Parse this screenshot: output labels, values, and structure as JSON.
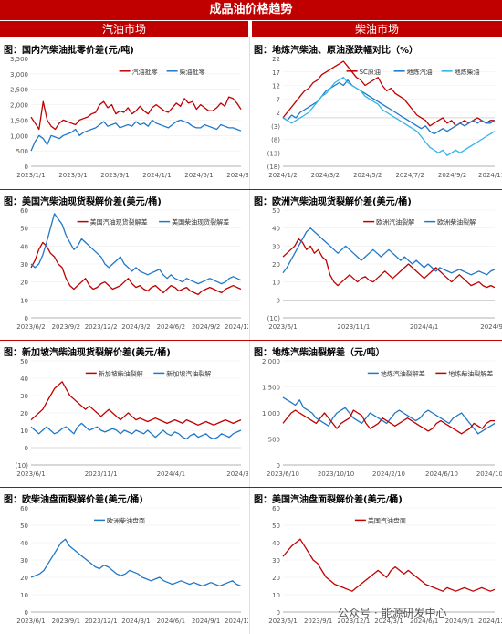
{
  "header": {
    "title": "成品油价格趋势"
  },
  "columns": {
    "left": "汽油市场",
    "right": "柴油市场"
  },
  "watermark": "公众号 · 能源研发中心",
  "colors": {
    "red": "#c00000",
    "blue": "#1f78c8",
    "lightblue": "#33b5e5",
    "accent": "#c00000"
  },
  "chart_data": [
    {
      "id": "p1",
      "title": "图：国内汽柴油批零价差(元/吨)",
      "type": "line",
      "ylim": [
        0,
        3500
      ],
      "yticks": [
        "0",
        "500",
        "1,000",
        "1,500",
        "2,000",
        "2,500",
        "3,000",
        "3,500"
      ],
      "xticks": [
        "2023/1/1",
        "2023/5/1",
        "2023/9/1",
        "2024/1/1",
        "2024/5/1",
        "2024/9/1"
      ],
      "series": [
        {
          "name": "汽油批零",
          "color": "#c00000",
          "values": [
            1600,
            1400,
            1200,
            2100,
            1500,
            1300,
            1200,
            1400,
            1500,
            1450,
            1400,
            1350,
            1500,
            1550,
            1600,
            1700,
            1750,
            2000,
            2100,
            1900,
            2000,
            1700,
            1800,
            1750,
            1900,
            1700,
            1800,
            1950,
            1800,
            1700,
            1900,
            2000,
            1900,
            1800,
            1750,
            1900,
            2050,
            1950,
            2200,
            2050,
            2100,
            1850,
            2000,
            1900,
            1800,
            1800,
            1900,
            2050,
            1950,
            2250,
            2200,
            2050,
            1850
          ]
        },
        {
          "name": "柴油批零",
          "color": "#1f78c8",
          "values": [
            500,
            800,
            1000,
            900,
            700,
            1000,
            950,
            900,
            1000,
            1050,
            1100,
            1200,
            1000,
            1100,
            1150,
            1200,
            1250,
            1350,
            1450,
            1300,
            1350,
            1400,
            1250,
            1300,
            1350,
            1300,
            1450,
            1350,
            1400,
            1300,
            1500,
            1400,
            1350,
            1300,
            1250,
            1350,
            1450,
            1500,
            1450,
            1400,
            1300,
            1250,
            1250,
            1350,
            1300,
            1250,
            1200,
            1350,
            1300,
            1250,
            1250,
            1200,
            1150
          ]
        }
      ]
    },
    {
      "id": "p2",
      "title": "图：地炼汽柴油、原油涨跌幅对比（%）",
      "type": "line",
      "ylim": [
        -18,
        22
      ],
      "yticks": [
        "(18)",
        "(13)",
        "(8)",
        "(3)",
        "2",
        "7",
        "12",
        "17",
        "22"
      ],
      "xticks": [
        "2024/1/2",
        "2024/3/2",
        "2024/5/2",
        "2024/7/2",
        "2024/9/2",
        "2024/11/2"
      ],
      "series": [
        {
          "name": "SC原油",
          "color": "#c00000",
          "values": [
            0,
            2,
            4,
            6,
            8,
            10,
            11,
            13,
            14,
            16,
            17,
            18,
            19,
            20,
            21,
            19,
            17,
            15,
            14,
            12,
            13,
            14,
            15,
            12,
            10,
            11,
            9,
            8,
            7,
            5,
            3,
            1,
            0,
            -1,
            -3,
            -2,
            -1,
            0,
            -2,
            -1,
            -3,
            -2,
            -1,
            -2,
            -1,
            0,
            -1,
            -2,
            -1,
            -1
          ]
        },
        {
          "name": "地炼汽油",
          "color": "#1f78c8",
          "values": [
            0,
            -1,
            1,
            0,
            2,
            3,
            4,
            5,
            6,
            8,
            10,
            11,
            12,
            13,
            12,
            14,
            12,
            11,
            10,
            9,
            8,
            7,
            6,
            5,
            4,
            3,
            2,
            1,
            0,
            -1,
            -2,
            -3,
            -4,
            -3,
            -5,
            -6,
            -5,
            -4,
            -5,
            -4,
            -3,
            -2,
            -3,
            -2,
            -1,
            -2,
            -1,
            -2,
            -2,
            -1
          ]
        },
        {
          "name": "地炼柴油",
          "color": "#33b5e5",
          "values": [
            0,
            -1,
            -2,
            -1,
            0,
            1,
            2,
            4,
            6,
            8,
            9,
            11,
            13,
            14,
            15,
            13,
            12,
            11,
            10,
            8,
            7,
            6,
            5,
            3,
            2,
            1,
            0,
            -1,
            -2,
            -3,
            -4,
            -5,
            -7,
            -9,
            -11,
            -12,
            -13,
            -12,
            -14,
            -13,
            -12,
            -13,
            -12,
            -11,
            -10,
            -9,
            -8,
            -7,
            -6,
            -5
          ]
        }
      ]
    },
    {
      "id": "p3",
      "title": "图：美国汽柴油现货裂解价差(美元/桶)",
      "type": "line",
      "ylim": [
        0,
        60
      ],
      "yticks": [
        "0",
        "10",
        "20",
        "30",
        "40",
        "50",
        "60"
      ],
      "xticks": [
        "2023/6/2",
        "2023/9/2",
        "2023/12/2",
        "2024/3/2",
        "2024/6/2",
        "2024/9/2",
        "2024/12/2"
      ],
      "series": [
        {
          "name": "美国汽油现货裂解差",
          "color": "#c00000",
          "values": [
            28,
            32,
            38,
            42,
            40,
            36,
            34,
            30,
            28,
            22,
            18,
            16,
            18,
            20,
            22,
            18,
            16,
            17,
            19,
            20,
            18,
            16,
            17,
            18,
            20,
            22,
            19,
            17,
            18,
            16,
            15,
            17,
            18,
            16,
            14,
            16,
            18,
            17,
            15,
            16,
            17,
            15,
            14,
            13,
            15,
            16,
            17,
            16,
            15,
            14,
            16,
            17,
            18,
            17,
            16
          ]
        },
        {
          "name": "美国柴油现货裂解差",
          "color": "#1f78c8",
          "values": [
            30,
            28,
            30,
            35,
            42,
            50,
            58,
            55,
            52,
            46,
            42,
            38,
            40,
            44,
            42,
            40,
            38,
            36,
            34,
            30,
            28,
            30,
            32,
            34,
            30,
            28,
            26,
            28,
            26,
            25,
            24,
            25,
            26,
            27,
            24,
            22,
            24,
            22,
            21,
            20,
            22,
            21,
            20,
            19,
            20,
            21,
            22,
            21,
            20,
            19,
            20,
            22,
            23,
            22,
            21
          ]
        }
      ]
    },
    {
      "id": "p4",
      "title": "图：欧洲汽柴油现货裂解价差(美元/桶)",
      "type": "line",
      "ylim": [
        -10,
        50
      ],
      "yticks": [
        "(10)",
        "0",
        "10",
        "20",
        "30",
        "40",
        "50"
      ],
      "xticks": [
        "2023/6/1",
        "2023/11/1",
        "2024/4/1",
        "2024/9/1"
      ],
      "series": [
        {
          "name": "欧洲汽油裂解",
          "color": "#c00000",
          "values": [
            24,
            26,
            28,
            30,
            34,
            32,
            28,
            30,
            26,
            28,
            24,
            22,
            14,
            10,
            8,
            10,
            12,
            14,
            12,
            10,
            12,
            13,
            11,
            10,
            12,
            14,
            16,
            14,
            12,
            14,
            16,
            18,
            20,
            18,
            16,
            14,
            12,
            14,
            16,
            18,
            16,
            14,
            12,
            10,
            12,
            14,
            12,
            10,
            8,
            9,
            10,
            8,
            7,
            8,
            7
          ]
        },
        {
          "name": "欧洲柴油裂解",
          "color": "#1f78c8",
          "values": [
            15,
            18,
            22,
            26,
            30,
            34,
            38,
            40,
            38,
            36,
            34,
            32,
            30,
            28,
            26,
            28,
            30,
            28,
            26,
            24,
            22,
            24,
            26,
            28,
            26,
            24,
            26,
            28,
            26,
            24,
            22,
            24,
            22,
            20,
            22,
            20,
            18,
            20,
            18,
            16,
            18,
            17,
            16,
            15,
            16,
            17,
            16,
            15,
            14,
            15,
            16,
            15,
            14,
            16,
            17
          ]
        }
      ]
    },
    {
      "id": "p5",
      "title": "图：新加坡汽柴油现货裂解价差(美元/桶)",
      "type": "line",
      "ylim": [
        -10,
        50
      ],
      "yticks": [
        "(10)",
        "0",
        "10",
        "20",
        "30",
        "40",
        "50"
      ],
      "xticks": [
        "2023/6/1",
        "2023/11/1",
        "2024/4/1",
        "2024/9/1"
      ],
      "series": [
        {
          "name": "新加坡柴油裂解",
          "color": "#c00000",
          "values": [
            16,
            18,
            20,
            22,
            26,
            30,
            34,
            36,
            38,
            34,
            30,
            28,
            26,
            24,
            22,
            24,
            22,
            20,
            18,
            20,
            22,
            20,
            18,
            16,
            18,
            20,
            18,
            16,
            17,
            16,
            15,
            16,
            17,
            16,
            15,
            14,
            15,
            16,
            15,
            14,
            16,
            15,
            14,
            13,
            14,
            15,
            14,
            13,
            14,
            15,
            16,
            15,
            14,
            15,
            16
          ]
        },
        {
          "name": "新加坡汽油裂解",
          "color": "#1f78c8",
          "values": [
            12,
            10,
            8,
            10,
            12,
            10,
            8,
            9,
            11,
            12,
            10,
            8,
            12,
            14,
            12,
            10,
            11,
            12,
            10,
            9,
            10,
            11,
            10,
            8,
            10,
            9,
            8,
            10,
            9,
            8,
            10,
            8,
            6,
            8,
            10,
            8,
            7,
            9,
            8,
            6,
            5,
            7,
            8,
            6,
            7,
            8,
            6,
            5,
            6,
            8,
            7,
            6,
            8,
            9,
            10
          ]
        }
      ]
    },
    {
      "id": "p6",
      "title": "图：地炼汽柴油裂解差（元/吨）",
      "type": "line",
      "ylim": [
        0,
        2000
      ],
      "yticks": [
        "0",
        "500",
        "1,000",
        "1,500",
        "2,000"
      ],
      "xticks": [
        "2023/6/10",
        "2023/10/10",
        "2024/2/10",
        "2024/6/10",
        "2024/10/10"
      ],
      "series": [
        {
          "name": "地炼汽油裂解差",
          "color": "#1f78c8",
          "values": [
            1300,
            1250,
            1200,
            1150,
            1250,
            1100,
            1050,
            1000,
            900,
            850,
            800,
            750,
            900,
            1000,
            1050,
            1100,
            1000,
            900,
            850,
            800,
            900,
            1000,
            950,
            900,
            850,
            800,
            900,
            1000,
            1050,
            1000,
            950,
            900,
            850,
            900,
            1000,
            1050,
            1000,
            950,
            900,
            850,
            800,
            900,
            950,
            1000,
            900,
            800,
            700,
            600,
            650,
            700,
            750,
            800
          ]
        },
        {
          "name": "地炼柴油裂解差",
          "color": "#c00000",
          "values": [
            800,
            900,
            1000,
            1050,
            1000,
            950,
            900,
            850,
            800,
            900,
            1000,
            900,
            800,
            700,
            800,
            850,
            900,
            1050,
            1000,
            950,
            800,
            700,
            750,
            800,
            900,
            850,
            800,
            750,
            800,
            850,
            900,
            850,
            800,
            750,
            700,
            650,
            700,
            800,
            850,
            800,
            750,
            700,
            650,
            600,
            650,
            700,
            800,
            750,
            700,
            800,
            850,
            850
          ]
        }
      ]
    },
    {
      "id": "p7",
      "title": "图：欧柴油盘面裂解价差(美元/桶)",
      "type": "line",
      "ylim": [
        0,
        60
      ],
      "yticks": [
        "0",
        "10",
        "20",
        "30",
        "40",
        "50",
        "60"
      ],
      "xticks": [
        "2023/6/1",
        "2023/9/1",
        "2023/12/1",
        "2024/3/1",
        "2024/6/1",
        "2024/9/1",
        "2024/12/1"
      ],
      "series": [
        {
          "name": "欧洲柴油盘面",
          "color": "#1f78c8",
          "values": [
            20,
            21,
            22,
            24,
            28,
            32,
            36,
            40,
            42,
            38,
            36,
            34,
            32,
            30,
            28,
            26,
            25,
            27,
            26,
            24,
            22,
            21,
            22,
            24,
            23,
            22,
            20,
            19,
            18,
            19,
            20,
            18,
            17,
            16,
            17,
            18,
            17,
            16,
            17,
            16,
            15,
            16,
            17,
            16,
            15,
            16,
            17,
            18,
            16,
            15
          ]
        }
      ]
    },
    {
      "id": "p8",
      "title": "图：美国汽油盘面裂解价差(美元/桶)",
      "type": "line",
      "ylim": [
        0,
        60
      ],
      "yticks": [
        "0",
        "10",
        "20",
        "30",
        "40",
        "50",
        "60"
      ],
      "xticks": [
        "2023/6/1",
        "2023/9/1",
        "2023/12/1",
        "2024/3/1",
        "2024/6/1",
        "2024/9/1",
        "2024/12/1"
      ],
      "series": [
        {
          "name": "美国汽油盘面",
          "color": "#c00000",
          "values": [
            32,
            35,
            38,
            40,
            42,
            38,
            34,
            30,
            28,
            24,
            20,
            18,
            16,
            15,
            14,
            13,
            12,
            14,
            16,
            18,
            20,
            22,
            24,
            22,
            20,
            24,
            26,
            24,
            22,
            24,
            22,
            20,
            18,
            16,
            15,
            14,
            13,
            12,
            14,
            13,
            12,
            13,
            14,
            13,
            12,
            13,
            14,
            13,
            12,
            13
          ]
        }
      ]
    }
  ]
}
